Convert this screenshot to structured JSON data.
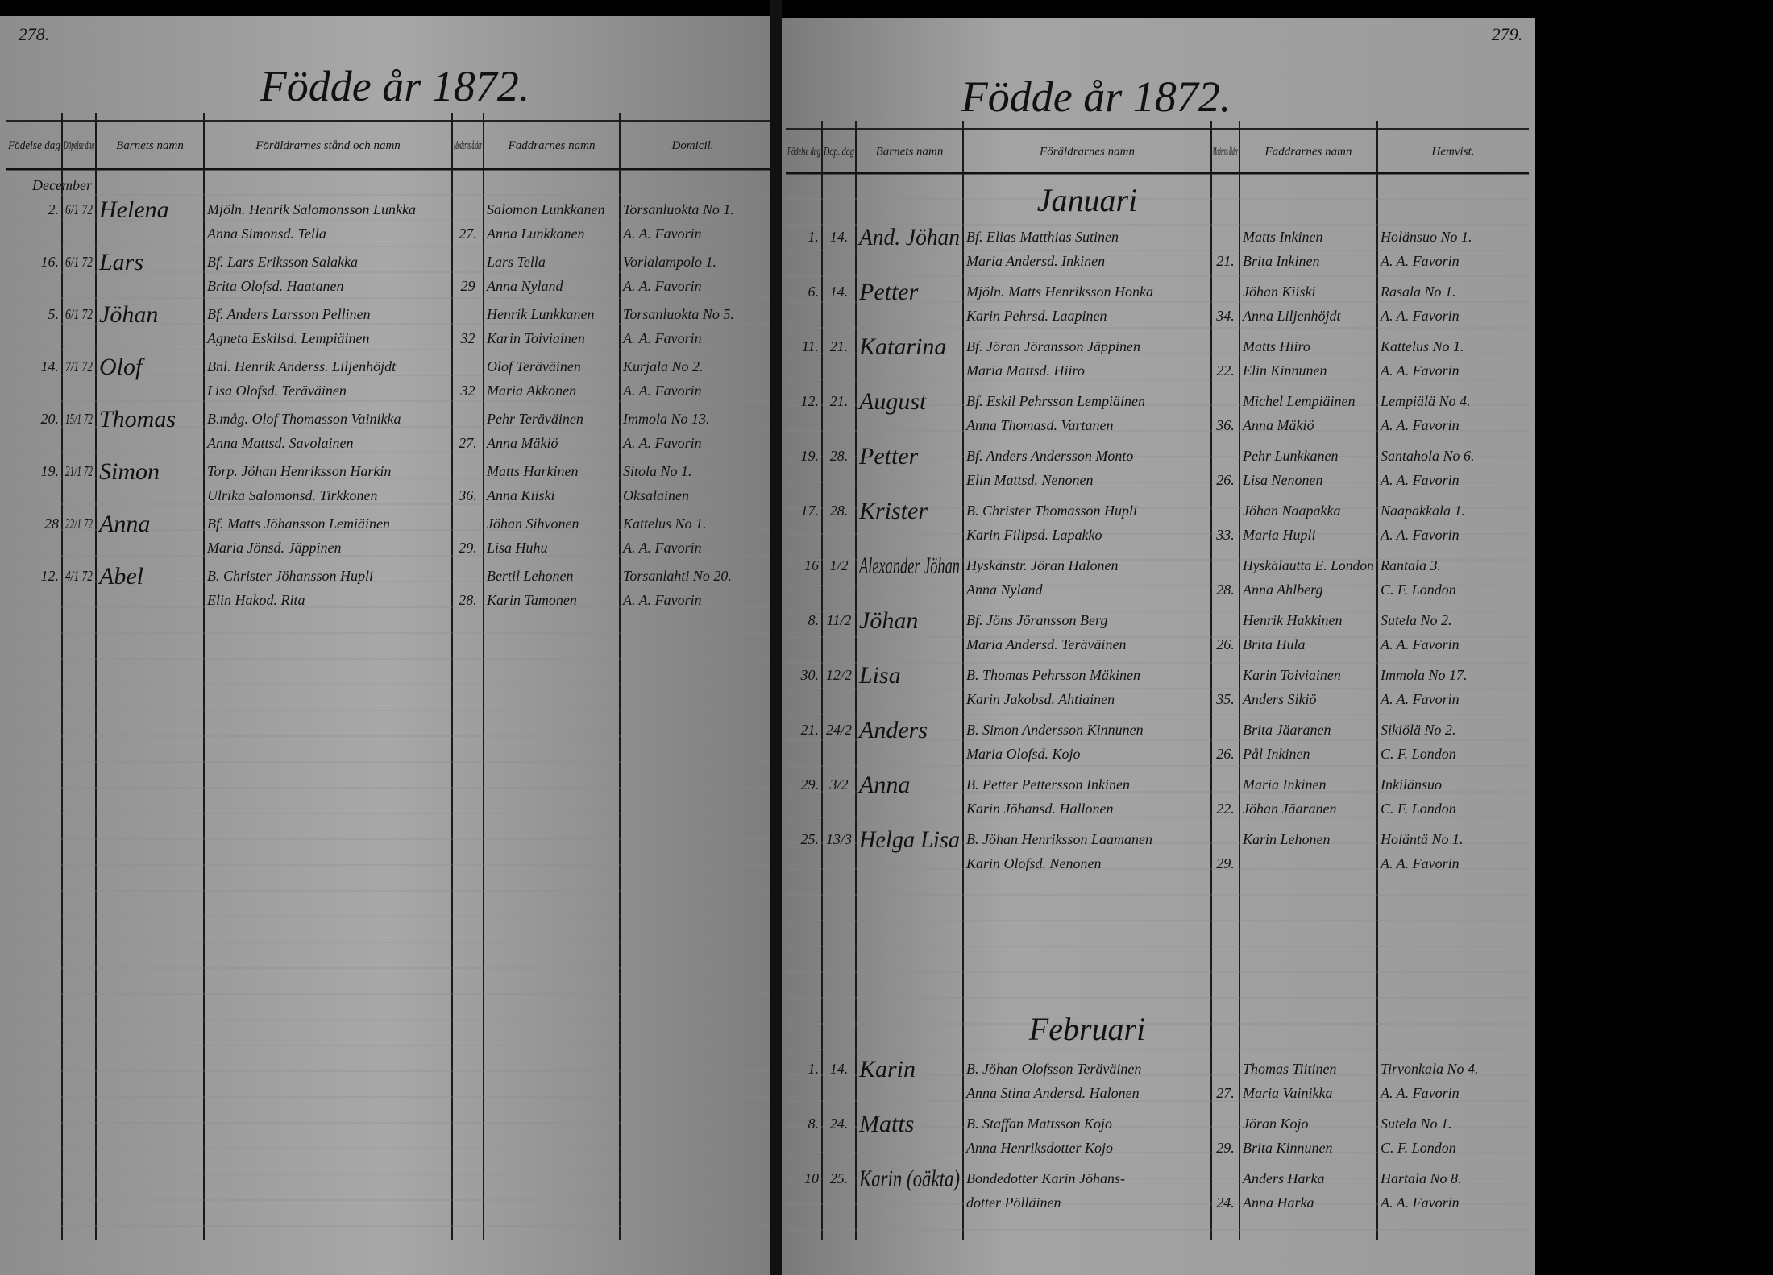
{
  "left_page": {
    "page_number": "278.",
    "title": "Födde år 1872.",
    "headers": [
      "Födelse dag",
      "Döpelse dag",
      "Barnets namn",
      "Föräldrarnes stånd och namn",
      "Moderns ålder",
      "Faddrarnes namn",
      "Domicil."
    ],
    "sections": [
      {
        "label": "December",
        "rows": [
          {
            "day": "2.",
            "baptism": "6/1 72",
            "child": "Helena",
            "parents": [
              "Mjöln. Henrik Salomonsson Lunkka",
              "Anna Simonsd. Tella"
            ],
            "age": "27.",
            "godparents": [
              "Salomon Lunkkanen",
              "Anna Lunkkanen"
            ],
            "domicile": [
              "Torsanluokta No 1.",
              "A. A. Favorin"
            ]
          },
          {
            "day": "16.",
            "baptism": "6/1 72",
            "child": "Lars",
            "parents": [
              "Bf. Lars Eriksson Salakka",
              "Brita Olofsd. Haatanen"
            ],
            "age": "29",
            "godparents": [
              "Lars Tella",
              "Anna Nyland"
            ],
            "domicile": [
              "Vorlalampolo 1.",
              "A. A. Favorin"
            ]
          },
          {
            "day": "5.",
            "baptism": "6/1 72",
            "child": "Jöhan",
            "parents": [
              "Bf. Anders Larsson Pellinen",
              "Agneta Eskilsd. Lempiäinen"
            ],
            "age": "32",
            "godparents": [
              "Henrik Lunkkanen",
              "Karin Toiviainen"
            ],
            "domicile": [
              "Torsanluokta No 5.",
              "A. A. Favorin"
            ]
          },
          {
            "day": "14.",
            "baptism": "7/1 72",
            "child": "Olof",
            "parents": [
              "Bnl. Henrik Anderss. Liljenhöjdt",
              "Lisa Olofsd. Teräväinen"
            ],
            "age": "32",
            "godparents": [
              "Olof Teräväinen",
              "Maria Akkonen"
            ],
            "domicile": [
              "Kurjala No 2.",
              "A. A. Favorin"
            ]
          },
          {
            "day": "20.",
            "baptism": "15/1 72",
            "child": "Thomas",
            "parents": [
              "B.måg. Olof Thomasson Vainikka",
              "Anna Mattsd. Savolainen"
            ],
            "age": "27.",
            "godparents": [
              "Pehr Teräväinen",
              "Anna Mäkiö"
            ],
            "domicile": [
              "Immola No 13.",
              "A. A. Favorin"
            ]
          },
          {
            "day": "19.",
            "baptism": "21/1 72",
            "child": "Simon",
            "parents": [
              "Torp. Jöhan Henriksson Harkin",
              "Ulrika Salomonsd. Tirkkonen"
            ],
            "age": "36.",
            "godparents": [
              "Matts Harkinen",
              "Anna Kiiski"
            ],
            "domicile": [
              "Sitola No 1.",
              "Oksalainen"
            ]
          },
          {
            "day": "28",
            "baptism": "22/1 72",
            "child": "Anna",
            "parents": [
              "Bf. Matts Jöhansson Lemiäinen",
              "Maria Jönsd. Jäppinen"
            ],
            "age": "29.",
            "godparents": [
              "Jöhan Sihvonen",
              "Lisa Huhu"
            ],
            "domicile": [
              "Kattelus No 1.",
              "A. A. Favorin"
            ]
          },
          {
            "day": "12.",
            "baptism": "4/1 72",
            "child": "Abel",
            "parents": [
              "B. Christer Jöhansson Hupli",
              "Elin Hakod. Rita"
            ],
            "age": "28.",
            "godparents": [
              "Bertil Lehonen",
              "Karin Tamonen"
            ],
            "domicile": [
              "Torsanlahti No 20.",
              "A. A. Favorin"
            ]
          }
        ]
      }
    ]
  },
  "right_page": {
    "page_number": "279.",
    "title": "Födde år 1872.",
    "headers": [
      "Födelse dag",
      "Dop. dag",
      "Barnets namn",
      "Föräldrarnes namn",
      "Moderns ålder",
      "Faddrarnes namn",
      "Hemvist."
    ],
    "sections": [
      {
        "label": "Januari",
        "rows": [
          {
            "day": "1.",
            "baptism": "14.",
            "child": "And. Jöhan",
            "parents": [
              "Bf. Elias Matthias Sutinen",
              "Maria Andersd. Inkinen"
            ],
            "age": "21.",
            "godparents": [
              "Matts Inkinen",
              "Brita Inkinen"
            ],
            "domicile": [
              "Holänsuo No 1.",
              "A. A. Favorin"
            ]
          },
          {
            "day": "6.",
            "baptism": "14.",
            "child": "Petter",
            "parents": [
              "Mjöln. Matts Henriksson Honka",
              "Karin Pehrsd. Laapinen"
            ],
            "age": "34.",
            "godparents": [
              "Jöhan Kiiski",
              "Anna Liljenhöjdt"
            ],
            "domicile": [
              "Rasala No 1.",
              "A. A. Favorin"
            ]
          },
          {
            "day": "11.",
            "baptism": "21.",
            "child": "Katarina",
            "parents": [
              "Bf. Jöran Jöransson Jäppinen",
              "Maria Mattsd. Hiiro"
            ],
            "age": "22.",
            "godparents": [
              "Matts Hiiro",
              "Elin Kinnunen"
            ],
            "domicile": [
              "Kattelus No 1.",
              "A. A. Favorin"
            ]
          },
          {
            "day": "12.",
            "baptism": "21.",
            "child": "August",
            "parents": [
              "Bf. Eskil Pehrsson Lempiäinen",
              "Anna Thomasd. Vartanen"
            ],
            "age": "36.",
            "godparents": [
              "Michel Lempiäinen",
              "Anna Mäkiö"
            ],
            "domicile": [
              "Lempiälä No 4.",
              "A. A. Favorin"
            ]
          },
          {
            "day": "19.",
            "baptism": "28.",
            "child": "Petter",
            "parents": [
              "Bf. Anders Andersson Monto",
              "Elin Mattsd. Nenonen"
            ],
            "age": "26.",
            "godparents": [
              "Pehr Lunkkanen",
              "Lisa Nenonen"
            ],
            "domicile": [
              "Santahola No 6.",
              "A. A. Favorin"
            ]
          },
          {
            "day": "17.",
            "baptism": "28.",
            "child": "Krister",
            "parents": [
              "B. Christer Thomasson Hupli",
              "Karin Filipsd. Lapakko"
            ],
            "age": "33.",
            "godparents": [
              "Jöhan Naapakka",
              "Maria Hupli"
            ],
            "domicile": [
              "Naapakkala 1.",
              "A. A. Favorin"
            ]
          },
          {
            "day": "16",
            "baptism": "1/2",
            "child": "Alexander Jöhan",
            "parents": [
              "Hyskänstr. Jöran Halonen",
              "Anna Nyland"
            ],
            "age": "28.",
            "godparents": [
              "Hyskälautta E. London",
              "Anna Ahlberg"
            ],
            "domicile": [
              "Rantala 3.",
              "C. F. London"
            ]
          },
          {
            "day": "8.",
            "baptism": "11/2",
            "child": "Jöhan",
            "parents": [
              "Bf. Jöns Jöransson Berg",
              "Maria Andersd. Teräväinen"
            ],
            "age": "26.",
            "godparents": [
              "Henrik Hakkinen",
              "Brita Hula"
            ],
            "domicile": [
              "Sutela No 2.",
              "A. A. Favorin"
            ]
          },
          {
            "day": "30.",
            "baptism": "12/2",
            "child": "Lisa",
            "parents": [
              "B. Thomas Pehrsson Mäkinen",
              "Karin Jakobsd. Ahtiainen"
            ],
            "age": "35.",
            "godparents": [
              "Karin Toiviainen",
              "Anders Sikiö"
            ],
            "domicile": [
              "Immola No 17.",
              "A. A. Favorin"
            ]
          },
          {
            "day": "21.",
            "baptism": "24/2",
            "child": "Anders",
            "parents": [
              "B. Simon Andersson Kinnunen",
              "Maria Olofsd. Kojo"
            ],
            "age": "26.",
            "godparents": [
              "Brita Jäaranen",
              "Pål Inkinen"
            ],
            "domicile": [
              "Sikiölä No 2.",
              "C. F. London"
            ]
          },
          {
            "day": "29.",
            "baptism": "3/2",
            "child": "Anna",
            "parents": [
              "B. Petter Pettersson Inkinen",
              "Karin Jöhansd. Hallonen"
            ],
            "age": "22.",
            "godparents": [
              "Maria Inkinen",
              "Jöhan Jäaranen"
            ],
            "domicile": [
              "Inkilänsuo",
              "C. F. London"
            ]
          },
          {
            "day": "25.",
            "baptism": "13/3",
            "child": "Helga Lisa",
            "parents": [
              "B. Jöhan Henriksson Laamanen",
              "Karin Olofsd. Nenonen"
            ],
            "age": "29.",
            "godparents": [
              "Karin Lehonen"
            ],
            "domicile": [
              "Holäntä No 1.",
              "A. A. Favorin"
            ]
          }
        ]
      },
      {
        "label": "Februari",
        "rows": [
          {
            "day": "1.",
            "baptism": "14.",
            "child": "Karin",
            "parents": [
              "B. Jöhan Olofsson Teräväinen",
              "Anna Stina Andersd. Halonen"
            ],
            "age": "27.",
            "godparents": [
              "Thomas Tiitinen",
              "Maria Vainikka"
            ],
            "domicile": [
              "Tirvonkala No 4.",
              "A. A. Favorin"
            ]
          },
          {
            "day": "8.",
            "baptism": "24.",
            "child": "Matts",
            "parents": [
              "B. Staffan Mattsson Kojo",
              "Anna Henriksdotter Kojo"
            ],
            "age": "29.",
            "godparents": [
              "Jöran Kojo",
              "Brita Kinnunen"
            ],
            "domicile": [
              "Sutela No 1.",
              "C. F. London"
            ]
          },
          {
            "day": "10",
            "baptism": "25.",
            "child": "Karin (oäkta)",
            "parents": [
              "Bondedotter Karin Jöhans-",
              "dotter Pölläinen"
            ],
            "age": "24.",
            "godparents": [
              "Anders Harka",
              "Anna Harka"
            ],
            "domicile": [
              "Hartala No 8.",
              "A. A. Favorin"
            ]
          }
        ]
      }
    ]
  }
}
